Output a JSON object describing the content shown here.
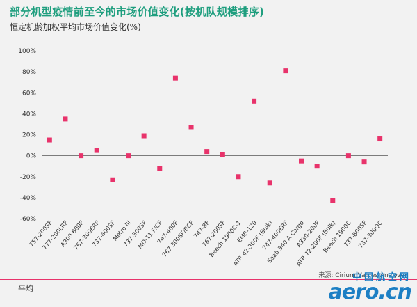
{
  "chart_data": {
    "type": "scatter",
    "title": "部分机型疫情前至今的市场价值变化(按机队规模排序)",
    "subtitle": "恒定机龄加权平均市场价值变化(%)",
    "categories": [
      "757-200SF",
      "777-200LRF",
      "A300 600F",
      "767-300ERF",
      "737-400SF",
      "Metro III",
      "737-300SF",
      "MD-11 F/CF",
      "747-400F",
      "767 300SF/BCF",
      "747-8F",
      "767-200SF",
      "Beech 1900C-1",
      "EMB-120",
      "ATR 42-300F (Bulk)",
      "747-400ERF",
      "Saab 340 A Cargo",
      "A330-200F",
      "ATR 72-200F (Bulk)",
      "Beech 1900C",
      "737-800SF",
      "737-300QC"
    ],
    "values": [
      15,
      35,
      0,
      5,
      -23,
      0,
      19,
      -12,
      74,
      27,
      4,
      1,
      -20,
      52,
      -26,
      81,
      -5,
      -10,
      -43,
      0,
      -6,
      16
    ],
    "yticks": [
      "100%",
      "80%",
      "60%",
      "40%",
      "20%",
      "0%",
      "-20%",
      "-40%",
      "-60%"
    ],
    "ylim": [
      -60,
      100
    ],
    "marker_color": "#e8336b",
    "grid": false,
    "source": "来源: Cirium Values Analyzer"
  },
  "footer": {
    "label": "平均"
  },
  "watermark": {
    "cn": "中国航空网",
    "en": "aero.cn",
    "color": "#1c7fc4"
  }
}
